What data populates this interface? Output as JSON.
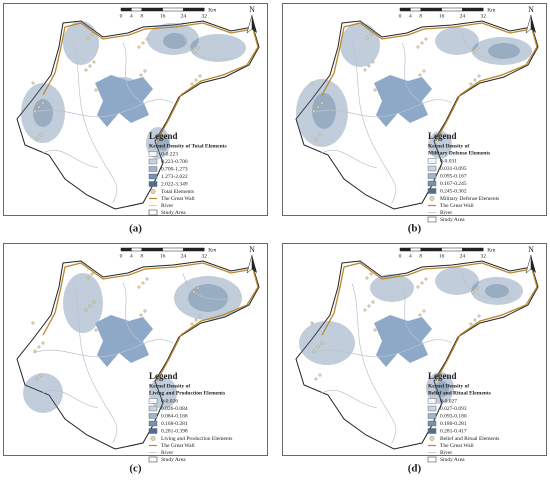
{
  "scale_bar": {
    "ticks": [
      0,
      4,
      8,
      16,
      24,
      32
    ],
    "unit": "Km"
  },
  "north": "N",
  "panels": [
    {
      "label": "(a)",
      "legend": {
        "title": "Legend",
        "subtitle": [
          "Kernel Density of Total Elements"
        ],
        "classes": [
          "0-0.223",
          "0.223-0.700",
          "0.700-1.273",
          "1.273-2.022",
          "2.022-3.349"
        ],
        "points": "Total Elements",
        "great_wall": "The Great Wall",
        "river": "River",
        "study_area": "Study Area"
      }
    },
    {
      "label": "(b)",
      "legend": {
        "title": "Legend",
        "subtitle": [
          "Kernel Density of",
          "Military Defense Elements"
        ],
        "classes": [
          "0-0.031",
          "0.031-0.095",
          "0.095-0.167",
          "0.167-0.245",
          "0.245-0.362"
        ],
        "points": "Military Defense Elements",
        "great_wall": "The Great Wall",
        "river": "River",
        "study_area": "Study Area"
      }
    },
    {
      "label": "(c)",
      "legend": {
        "title": "Legend",
        "subtitle": [
          "Kernel Density of",
          "Living and Production Elements"
        ],
        "classes": [
          "0-0.026",
          "0.026-0.084",
          "0.084-0.168",
          "0.168-0.281",
          "0.281-0.398"
        ],
        "points": "Living and Production Elements",
        "great_wall": "The Great Wall",
        "river": "River",
        "study_area": "Study Area"
      }
    },
    {
      "label": "(d)",
      "legend": {
        "title": "Legend",
        "subtitle": [
          "Kernel Density of",
          "Belief and Ritual Elements"
        ],
        "classes": [
          "0-0.027",
          "0.027-0.093",
          "0.093-0.180",
          "0.180-0.281",
          "0.281-0.417"
        ],
        "points": "Belief and Ritual Elements",
        "great_wall": "The Great Wall",
        "river": "River",
        "study_area": "Study Area"
      }
    }
  ]
}
